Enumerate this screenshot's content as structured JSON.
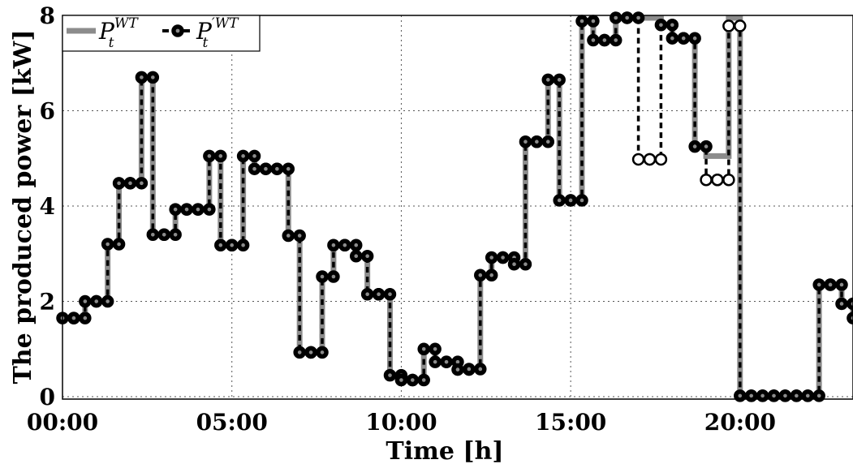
{
  "chart_data": {
    "type": "line",
    "xlabel": "Time [h]",
    "ylabel": "The produced power [kW]",
    "xlim": [
      0,
      23.333
    ],
    "ylim": [
      -0.05,
      8
    ],
    "xticks": [
      0,
      5,
      10,
      15,
      20
    ],
    "xtick_labels": [
      "00:00",
      "05:00",
      "10:00",
      "15:00",
      "20:00"
    ],
    "yticks": [
      0,
      2,
      4,
      6,
      8
    ],
    "ytick_labels": [
      "0",
      "2",
      "4",
      "6",
      "8"
    ],
    "grid": true,
    "legend_position": "top-left",
    "legend": {
      "s1": {
        "base": "P",
        "sub": "t",
        "sup": "WT"
      },
      "s2": {
        "base": "P",
        "sub": "t",
        "sup": "′WT"
      }
    },
    "step_interval_h": 0.3333,
    "series": [
      {
        "name": "P_t^WT",
        "style": "thick-gray-step",
        "color": "#8c8c8c",
        "values": [
          1.65,
          1.65,
          2.0,
          2.0,
          3.2,
          4.48,
          4.48,
          6.7,
          3.4,
          3.4,
          3.93,
          3.93,
          3.93,
          5.05,
          3.18,
          3.18,
          5.05,
          4.78,
          4.78,
          4.78,
          3.38,
          0.93,
          0.93,
          2.52,
          3.18,
          3.18,
          2.95,
          2.15,
          2.15,
          0.45,
          0.35,
          0.35,
          1.0,
          0.73,
          0.73,
          0.57,
          0.58,
          2.55,
          2.92,
          2.92,
          2.78,
          5.35,
          5.35,
          6.65,
          4.12,
          4.12,
          7.88,
          7.48,
          7.48,
          7.95,
          7.95,
          7.95,
          7.95,
          7.8,
          7.52,
          7.52,
          5.25,
          5.05,
          5.05,
          7.95,
          0.02,
          0.02,
          0.02,
          0.02,
          0.02,
          0.02,
          0.02,
          2.35,
          2.35,
          1.95,
          1.65,
          1.65,
          1.65
        ]
      },
      {
        "name": "P_t'^WT",
        "style": "black-dashed-step-circles",
        "color": "#000000",
        "values": [
          1.65,
          1.65,
          2.0,
          2.0,
          3.2,
          4.48,
          4.48,
          6.7,
          3.4,
          3.4,
          3.93,
          3.93,
          3.93,
          5.05,
          3.18,
          3.18,
          5.05,
          4.78,
          4.78,
          4.78,
          3.38,
          0.93,
          0.93,
          2.52,
          3.18,
          3.18,
          2.95,
          2.15,
          2.15,
          0.45,
          0.35,
          0.35,
          1.0,
          0.73,
          0.73,
          0.57,
          0.58,
          2.55,
          2.92,
          2.92,
          2.78,
          5.35,
          5.35,
          6.65,
          4.12,
          4.12,
          7.88,
          7.48,
          7.48,
          7.95,
          7.95,
          4.98,
          4.98,
          7.8,
          7.52,
          7.52,
          5.25,
          4.55,
          4.55,
          7.78,
          0.02,
          0.02,
          0.02,
          0.02,
          0.02,
          0.02,
          0.02,
          2.35,
          2.35,
          1.95,
          1.65,
          1.65,
          1.65
        ]
      }
    ]
  }
}
